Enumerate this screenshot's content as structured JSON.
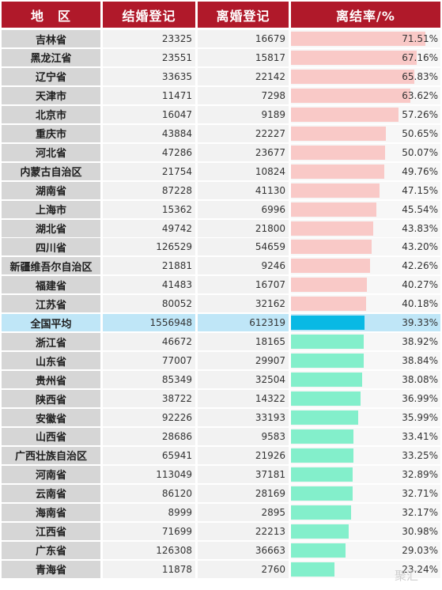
{
  "colors": {
    "header_bg": "#b0192a",
    "above_average_bar": "#f9c9c7",
    "average_bar": "#09b9e4",
    "below_average_bar": "#83efcb",
    "average_row_bg": "#bfe6f7"
  },
  "chart_data": {
    "type": "table",
    "title": "",
    "columns": [
      "地　区",
      "结婚登记",
      "离婚登记",
      "离结率/%"
    ],
    "bar_max_percent": 78,
    "rows": [
      {
        "region": "吉林省",
        "marriage": "23325",
        "divorce": "16679",
        "ratio": 71.51,
        "ratio_label": "71.51%"
      },
      {
        "region": "黑龙江省",
        "marriage": "23551",
        "divorce": "15817",
        "ratio": 67.16,
        "ratio_label": "67.16%"
      },
      {
        "region": "辽宁省",
        "marriage": "33635",
        "divorce": "22142",
        "ratio": 65.83,
        "ratio_label": "65.83%"
      },
      {
        "region": "天津市",
        "marriage": "11471",
        "divorce": "7298",
        "ratio": 63.62,
        "ratio_label": "63.62%"
      },
      {
        "region": "北京市",
        "marriage": "16047",
        "divorce": "9189",
        "ratio": 57.26,
        "ratio_label": "57.26%"
      },
      {
        "region": "重庆市",
        "marriage": "43884",
        "divorce": "22227",
        "ratio": 50.65,
        "ratio_label": "50.65%"
      },
      {
        "region": "河北省",
        "marriage": "47286",
        "divorce": "23677",
        "ratio": 50.07,
        "ratio_label": "50.07%"
      },
      {
        "region": "内蒙古自治区",
        "marriage": "21754",
        "divorce": "10824",
        "ratio": 49.76,
        "ratio_label": "49.76%"
      },
      {
        "region": "湖南省",
        "marriage": "87228",
        "divorce": "41130",
        "ratio": 47.15,
        "ratio_label": "47.15%"
      },
      {
        "region": "上海市",
        "marriage": "15362",
        "divorce": "6996",
        "ratio": 45.54,
        "ratio_label": "45.54%"
      },
      {
        "region": "湖北省",
        "marriage": "49742",
        "divorce": "21800",
        "ratio": 43.83,
        "ratio_label": "43.83%"
      },
      {
        "region": "四川省",
        "marriage": "126529",
        "divorce": "54659",
        "ratio": 43.2,
        "ratio_label": "43.20%"
      },
      {
        "region": "新疆维吾尔自治区",
        "marriage": "21881",
        "divorce": "9246",
        "ratio": 42.26,
        "ratio_label": "42.26%"
      },
      {
        "region": "福建省",
        "marriage": "41483",
        "divorce": "16707",
        "ratio": 40.27,
        "ratio_label": "40.27%"
      },
      {
        "region": "江苏省",
        "marriage": "80052",
        "divorce": "32162",
        "ratio": 40.18,
        "ratio_label": "40.18%"
      },
      {
        "region": "全国平均",
        "marriage": "1556948",
        "divorce": "612319",
        "ratio": 39.33,
        "ratio_label": "39.33%",
        "is_average": true
      },
      {
        "region": "浙江省",
        "marriage": "46672",
        "divorce": "18165",
        "ratio": 38.92,
        "ratio_label": "38.92%"
      },
      {
        "region": "山东省",
        "marriage": "77007",
        "divorce": "29907",
        "ratio": 38.84,
        "ratio_label": "38.84%"
      },
      {
        "region": "贵州省",
        "marriage": "85349",
        "divorce": "32504",
        "ratio": 38.08,
        "ratio_label": "38.08%"
      },
      {
        "region": "陕西省",
        "marriage": "38722",
        "divorce": "14322",
        "ratio": 36.99,
        "ratio_label": "36.99%"
      },
      {
        "region": "安徽省",
        "marriage": "92226",
        "divorce": "33193",
        "ratio": 35.99,
        "ratio_label": "35.99%"
      },
      {
        "region": "山西省",
        "marriage": "28686",
        "divorce": "9583",
        "ratio": 33.41,
        "ratio_label": "33.41%"
      },
      {
        "region": "广西壮族自治区",
        "marriage": "65941",
        "divorce": "21926",
        "ratio": 33.25,
        "ratio_label": "33.25%"
      },
      {
        "region": "河南省",
        "marriage": "113049",
        "divorce": "37181",
        "ratio": 32.89,
        "ratio_label": "32.89%"
      },
      {
        "region": "云南省",
        "marriage": "86120",
        "divorce": "28169",
        "ratio": 32.71,
        "ratio_label": "32.71%"
      },
      {
        "region": "海南省",
        "marriage": "8999",
        "divorce": "2895",
        "ratio": 32.17,
        "ratio_label": "32.17%"
      },
      {
        "region": "江西省",
        "marriage": "71699",
        "divorce": "22213",
        "ratio": 30.98,
        "ratio_label": "30.98%"
      },
      {
        "region": "广东省",
        "marriage": "126308",
        "divorce": "36663",
        "ratio": 29.03,
        "ratio_label": "29.03%"
      },
      {
        "region": "青海省",
        "marriage": "11878",
        "divorce": "2760",
        "ratio": 23.24,
        "ratio_label": "23.24%"
      }
    ]
  },
  "watermark": "聚汇"
}
